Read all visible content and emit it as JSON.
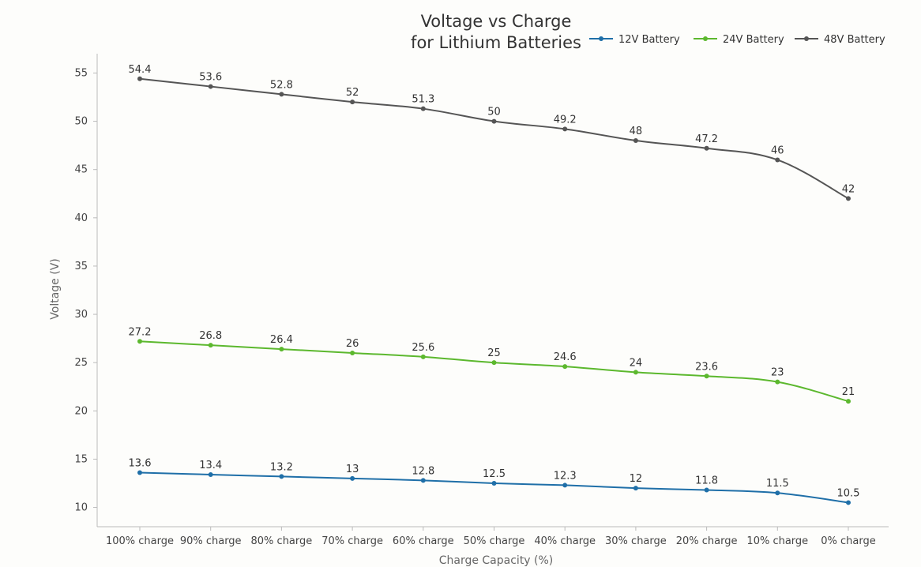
{
  "chart_data": {
    "type": "line",
    "title": [
      "Voltage vs Charge",
      "for Lithium Batteries"
    ],
    "xlabel": "Charge Capacity (%)",
    "ylabel": "Voltage (V)",
    "categories": [
      "100% charge",
      "90% charge",
      "80% charge",
      "70% charge",
      "60% charge",
      "50% charge",
      "40% charge",
      "30% charge",
      "20% charge",
      "10% charge",
      "0% charge"
    ],
    "ylim": [
      8,
      57
    ],
    "yticks": [
      10,
      15,
      20,
      25,
      30,
      35,
      40,
      45,
      50,
      55
    ],
    "grid": false,
    "legend_position": "top-right",
    "series": [
      {
        "name": "12V Battery",
        "color": "#1f6fa8",
        "values": [
          13.6,
          13.4,
          13.2,
          13,
          12.8,
          12.5,
          12.3,
          12,
          11.8,
          11.5,
          10.5
        ],
        "labels": [
          "13.6",
          "13.4",
          "13.2",
          "13",
          "12.8",
          "12.5",
          "12.3",
          "12",
          "11.8",
          "11.5",
          "10.5"
        ]
      },
      {
        "name": "24V Battery",
        "color": "#5cb82e",
        "values": [
          27.2,
          26.8,
          26.4,
          26,
          25.6,
          25,
          24.6,
          24,
          23.6,
          23,
          21
        ],
        "labels": [
          "27.2",
          "26.8",
          "26.4",
          "26",
          "25.6",
          "25",
          "24.6",
          "24",
          "23.6",
          "23",
          "21"
        ]
      },
      {
        "name": "48V Battery",
        "color": "#555555",
        "values": [
          54.4,
          53.6,
          52.8,
          52,
          51.3,
          50,
          49.2,
          48,
          47.2,
          46,
          42
        ],
        "labels": [
          "54.4",
          "53.6",
          "52.8",
          "52",
          "51.3",
          "50",
          "49.2",
          "48",
          "47.2",
          "46",
          "42"
        ]
      }
    ]
  }
}
